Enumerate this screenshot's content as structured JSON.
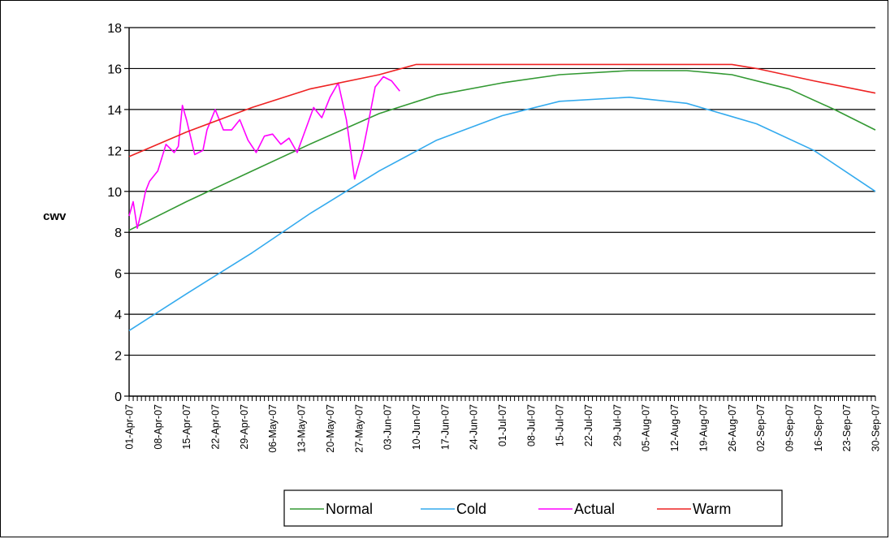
{
  "chart_data": {
    "type": "line",
    "title": "",
    "xlabel": "",
    "ylabel": "cwv",
    "ylim": [
      0,
      18
    ],
    "yticks": [
      0,
      2,
      4,
      6,
      8,
      10,
      12,
      14,
      16,
      18
    ],
    "grid": true,
    "legend_position": "bottom",
    "x_start": "2007-04-01",
    "x_end": "2007-09-30",
    "x_tick_labels": [
      "01-Apr-07",
      "08-Apr-07",
      "15-Apr-07",
      "22-Apr-07",
      "29-Apr-07",
      "06-May-07",
      "13-May-07",
      "20-May-07",
      "27-May-07",
      "03-Jun-07",
      "10-Jun-07",
      "17-Jun-07",
      "24-Jun-07",
      "01-Jul-07",
      "08-Jul-07",
      "15-Jul-07",
      "22-Jul-07",
      "29-Jul-07",
      "05-Aug-07",
      "12-Aug-07",
      "19-Aug-07",
      "26-Aug-07",
      "02-Sep-07",
      "09-Sep-07",
      "16-Sep-07",
      "23-Sep-07",
      "30-Sep-07"
    ],
    "series": [
      {
        "name": "Normal",
        "color": "#339933",
        "x": [
          "2007-04-01",
          "2007-04-15",
          "2007-05-01",
          "2007-05-15",
          "2007-06-01",
          "2007-06-15",
          "2007-07-01",
          "2007-07-15",
          "2007-08-01",
          "2007-08-15",
          "2007-08-26",
          "2007-09-09",
          "2007-09-20",
          "2007-09-30"
        ],
        "y": [
          8.1,
          9.5,
          11.0,
          12.3,
          13.8,
          14.7,
          15.3,
          15.7,
          15.9,
          15.9,
          15.7,
          15.0,
          14.0,
          13.0
        ]
      },
      {
        "name": "Cold",
        "color": "#33aaee",
        "x": [
          "2007-04-01",
          "2007-04-15",
          "2007-05-01",
          "2007-05-15",
          "2007-06-01",
          "2007-06-15",
          "2007-07-01",
          "2007-07-15",
          "2007-08-01",
          "2007-08-15",
          "2007-09-01",
          "2007-09-15",
          "2007-09-30"
        ],
        "y": [
          3.2,
          5.0,
          7.0,
          8.9,
          11.0,
          12.5,
          13.7,
          14.4,
          14.6,
          14.3,
          13.3,
          12.0,
          10.0
        ]
      },
      {
        "name": "Actual",
        "color": "#ff00ff",
        "x": [
          "2007-04-01",
          "2007-04-02",
          "2007-04-03",
          "2007-04-04",
          "2007-04-05",
          "2007-04-06",
          "2007-04-08",
          "2007-04-10",
          "2007-04-12",
          "2007-04-13",
          "2007-04-14",
          "2007-04-15",
          "2007-04-17",
          "2007-04-19",
          "2007-04-20",
          "2007-04-22",
          "2007-04-24",
          "2007-04-26",
          "2007-04-28",
          "2007-04-30",
          "2007-05-02",
          "2007-05-04",
          "2007-05-06",
          "2007-05-08",
          "2007-05-10",
          "2007-05-12",
          "2007-05-14",
          "2007-05-16",
          "2007-05-18",
          "2007-05-20",
          "2007-05-22",
          "2007-05-24",
          "2007-05-26",
          "2007-05-28",
          "2007-05-29",
          "2007-05-31",
          "2007-06-02",
          "2007-06-04",
          "2007-06-06"
        ],
        "y": [
          8.8,
          9.5,
          8.2,
          9.0,
          10.0,
          10.5,
          11.0,
          12.3,
          11.9,
          12.2,
          14.2,
          13.5,
          11.8,
          12.0,
          13.0,
          14.0,
          13.0,
          13.0,
          13.5,
          12.5,
          11.9,
          12.7,
          12.8,
          12.3,
          12.6,
          11.9,
          13.0,
          14.1,
          13.6,
          14.6,
          15.3,
          13.5,
          10.6,
          12.0,
          13.0,
          15.1,
          15.6,
          15.4,
          14.9
        ]
      },
      {
        "name": "Warm",
        "color": "#ee2222",
        "x": [
          "2007-04-01",
          "2007-04-15",
          "2007-05-01",
          "2007-05-15",
          "2007-06-01",
          "2007-06-10",
          "2007-07-01",
          "2007-08-01",
          "2007-08-26",
          "2007-09-01",
          "2007-09-15",
          "2007-09-30"
        ],
        "y": [
          11.7,
          12.9,
          14.1,
          15.0,
          15.7,
          16.2,
          16.2,
          16.2,
          16.2,
          16.0,
          15.4,
          14.8
        ]
      }
    ]
  }
}
